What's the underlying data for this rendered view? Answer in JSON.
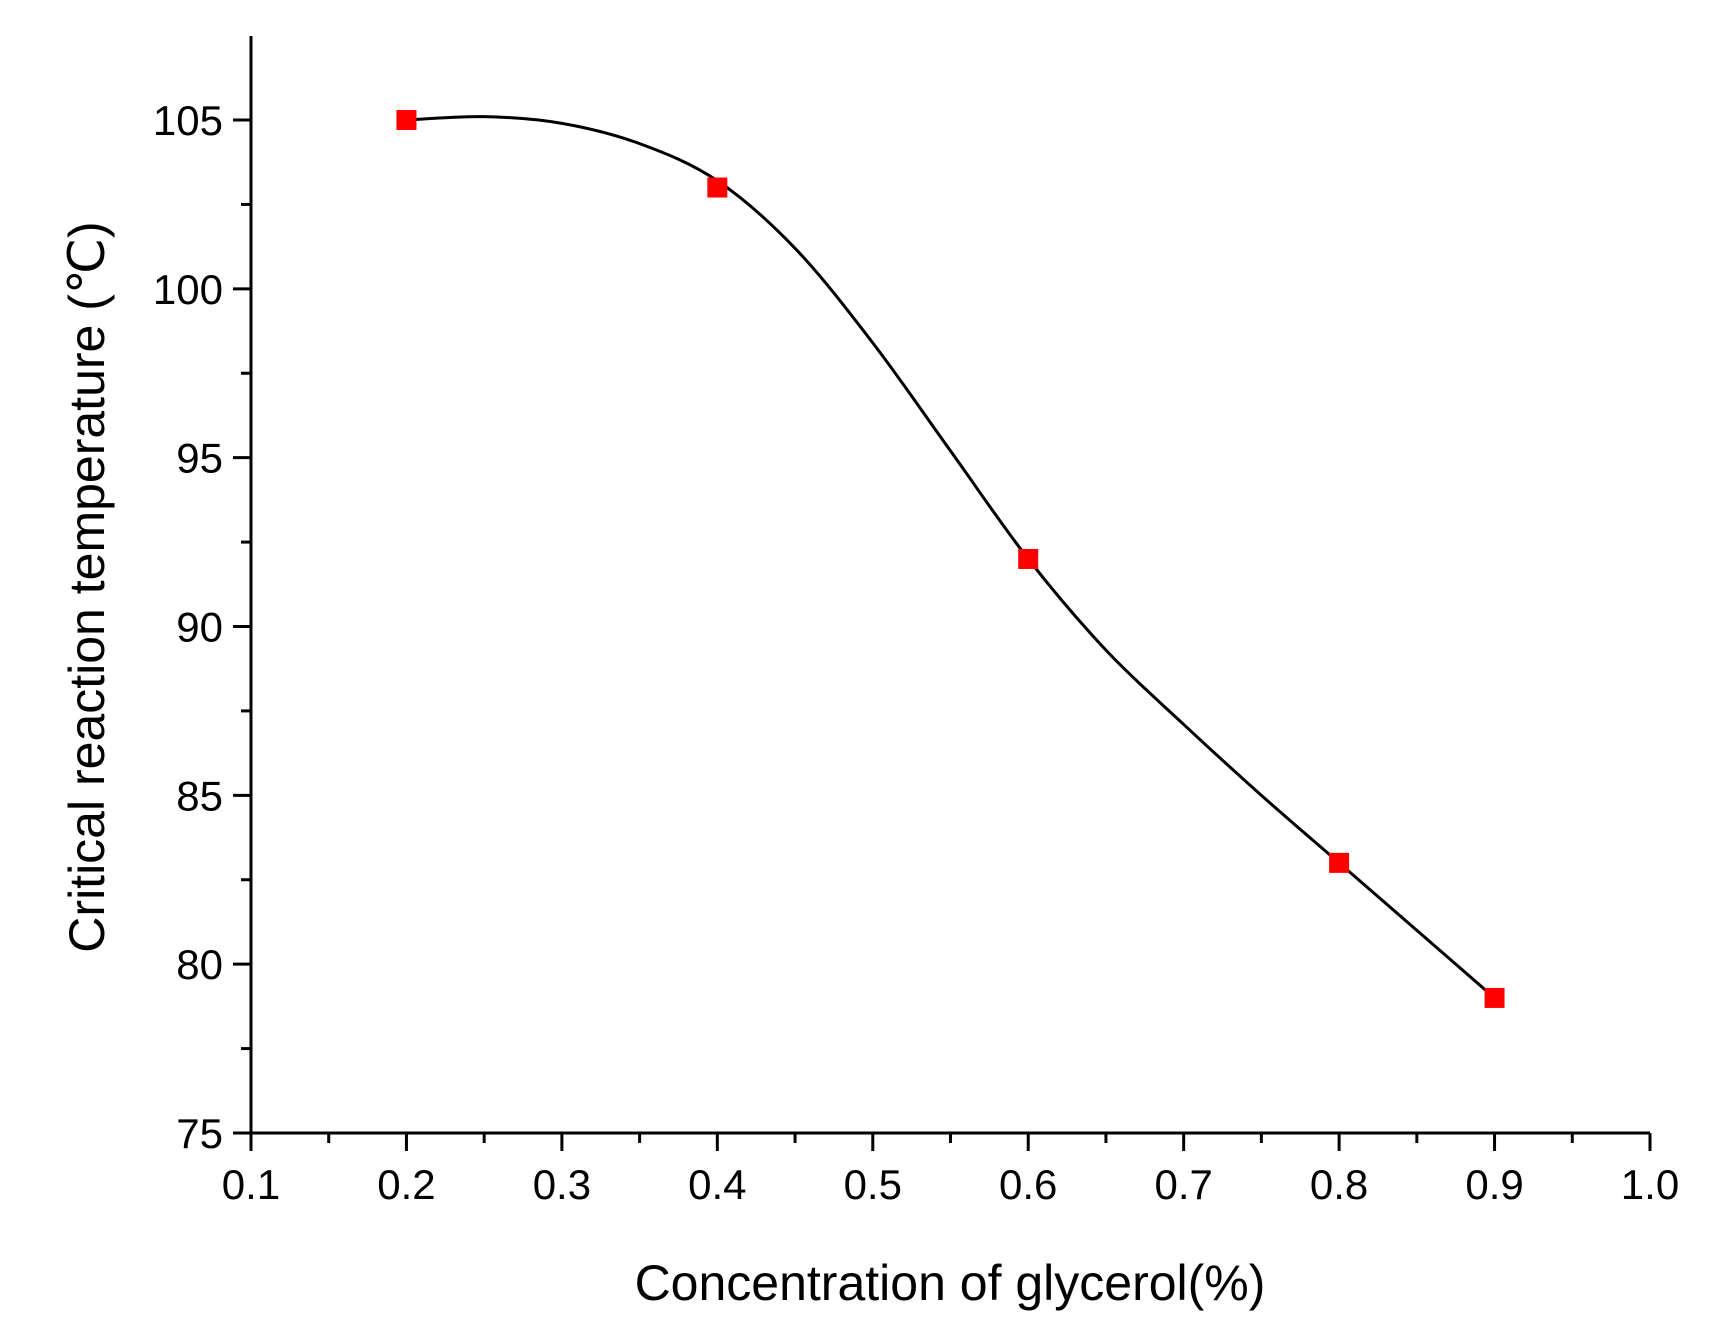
{
  "chart_data": {
    "type": "scatter",
    "title": "",
    "xlabel": "Concentration of glycerol(%)",
    "ylabel": "Critical reaction  temperature (℃)",
    "xlim": [
      0.1,
      1.0
    ],
    "ylim": [
      75,
      107.5
    ],
    "x_ticks": [
      0.1,
      0.2,
      0.3,
      0.4,
      0.5,
      0.6,
      0.7,
      0.8,
      0.9,
      1.0
    ],
    "x_tick_labels": [
      "0.1",
      "0.2",
      "0.3",
      "0.4",
      "0.5",
      "0.6",
      "0.7",
      "0.8",
      "0.9",
      "1.0"
    ],
    "y_ticks": [
      75,
      80,
      85,
      90,
      95,
      100,
      105
    ],
    "y_tick_labels": [
      "75",
      "80",
      "85",
      "90",
      "95",
      "100",
      "105"
    ],
    "grid": false,
    "series": [
      {
        "name": "Critical reaction temperature",
        "marker": "square",
        "color": "#ff0000",
        "x": [
          0.2,
          0.4,
          0.6,
          0.8,
          0.9
        ],
        "y": [
          105,
          103,
          92,
          83,
          79
        ]
      }
    ],
    "fit_curve": {
      "color": "#000000",
      "x": [
        0.2,
        0.25,
        0.3,
        0.35,
        0.4,
        0.45,
        0.5,
        0.55,
        0.6,
        0.65,
        0.7,
        0.75,
        0.8,
        0.85,
        0.9
      ],
      "y": [
        105,
        105.1,
        104.9,
        104.3,
        103.2,
        101.2,
        98.4,
        95.2,
        92.0,
        89.3,
        87.1,
        85.0,
        83.0,
        81.0,
        79.0
      ]
    }
  }
}
